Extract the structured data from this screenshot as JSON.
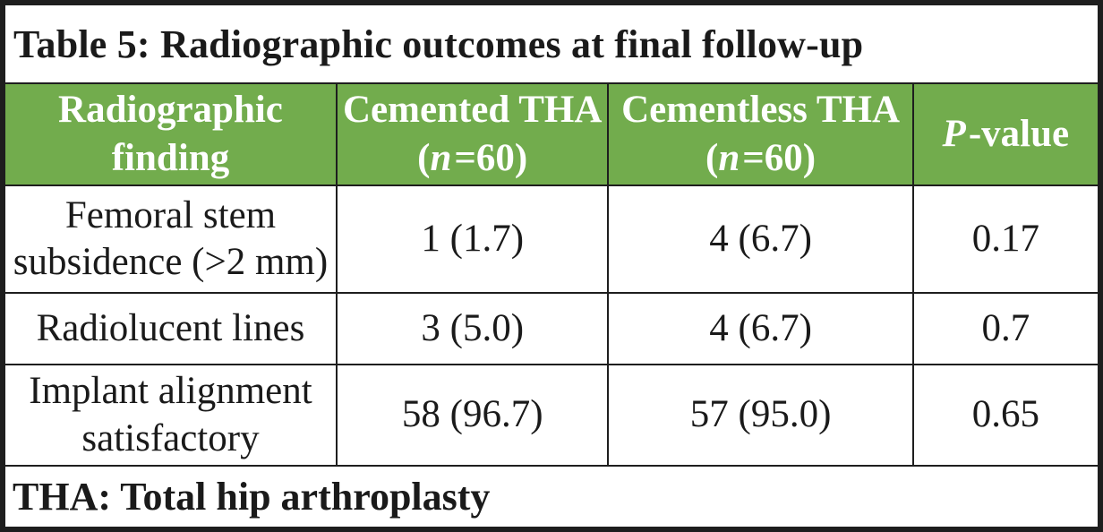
{
  "table": {
    "title": "Table 5: Radiographic outcomes at final follow-up",
    "header": {
      "finding_line1": "Radiographic",
      "finding_line2": "finding",
      "cemented_name": "Cemented THA",
      "cemented_n_pre": "(",
      "cemented_n_italic": "n",
      "cemented_n_post": "=60)",
      "cementless_name": "Cementless THA",
      "cementless_n_pre": "(",
      "cementless_n_italic": "n",
      "cementless_n_post": "=60)",
      "pvalue_italic": "P",
      "pvalue_rest": "-value"
    },
    "rows": [
      {
        "finding_lines": [
          "Femoral stem",
          "subsidence (>2 mm)"
        ],
        "cemented": "1 (1.7)",
        "cementless": "4 (6.7)",
        "p_value": "0.17"
      },
      {
        "finding_lines": [
          "Radiolucent lines"
        ],
        "cemented": "3 (5.0)",
        "cementless": "4 (6.7)",
        "p_value": "0.7"
      },
      {
        "finding_lines": [
          "Implant alignment",
          "satisfactory"
        ],
        "cemented": "58 (96.7)",
        "cementless": "57 (95.0)",
        "p_value": "0.65"
      }
    ],
    "footnote": "THA: Total hip arthroplasty"
  },
  "colors": {
    "header_bg": "#72AC4D",
    "header_text": "#FFFFFF",
    "border": "#1E1E1E",
    "text": "#1A1A1A",
    "row_bg": "#FFFFFF"
  }
}
